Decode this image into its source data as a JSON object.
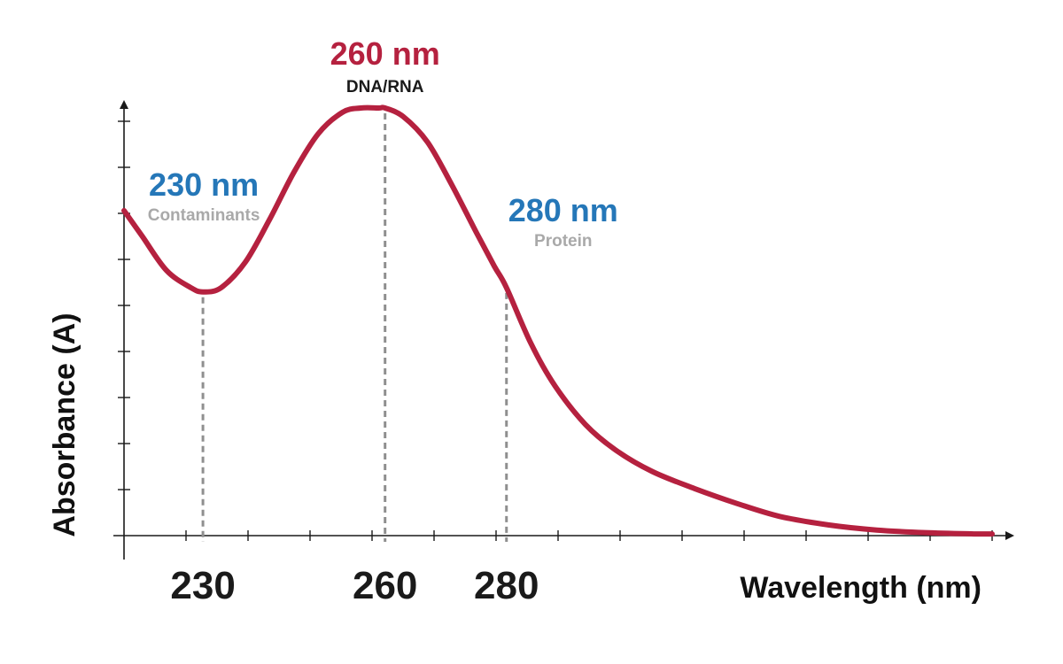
{
  "chart_data": {
    "type": "line",
    "title": "",
    "xlabel": "Wavelength (nm)",
    "ylabel": "Absorbance (A)",
    "x_ticks_labeled": [
      230,
      260,
      280
    ],
    "xlim": [
      217,
      360
    ],
    "ylim": [
      0,
      1
    ],
    "grid": false,
    "series": [
      {
        "color": "#b5213f",
        "x": [
          217,
          220,
          224,
          228,
          230,
          233,
          237,
          241,
          245,
          249,
          253,
          256,
          259,
          260,
          263,
          267,
          271,
          275,
          278,
          280,
          284,
          288,
          293,
          298,
          304,
          311,
          318,
          325,
          333,
          341,
          349,
          357,
          360
        ],
        "y": [
          0.76,
          0.7,
          0.62,
          0.58,
          0.57,
          0.58,
          0.64,
          0.74,
          0.85,
          0.94,
          0.99,
          1.0,
          1.0,
          1.0,
          0.98,
          0.92,
          0.82,
          0.71,
          0.63,
          0.58,
          0.45,
          0.35,
          0.26,
          0.2,
          0.15,
          0.11,
          0.075,
          0.045,
          0.025,
          0.013,
          0.007,
          0.004,
          0.004
        ]
      }
    ],
    "annotations": [
      {
        "x": 230,
        "label": "230 nm",
        "sublabel": "Contaminants",
        "label_color": "#2577b8",
        "sublabel_color": "#a9a9a9"
      },
      {
        "x": 260,
        "label": "260 nm",
        "sublabel": "DNA/RNA",
        "label_color": "#b5213f",
        "sublabel_color": "#1a1a1a"
      },
      {
        "x": 280,
        "label": "280 nm",
        "sublabel": "Protein",
        "label_color": "#2577b8",
        "sublabel_color": "#a9a9a9"
      }
    ]
  }
}
